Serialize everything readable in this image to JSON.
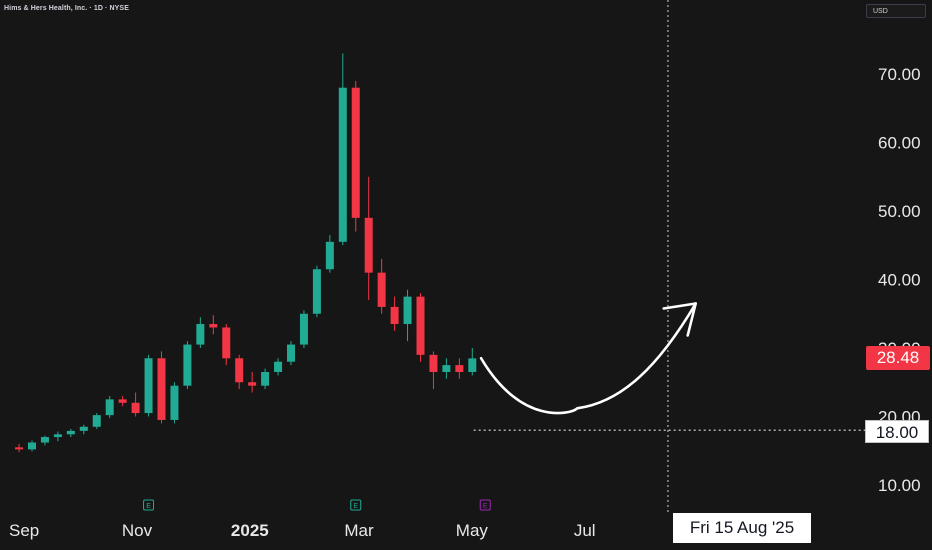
{
  "header": {
    "title": "Hims & Hers Health, Inc. · 1D · NYSE",
    "currency": "USD"
  },
  "colors": {
    "background": "#161616",
    "up_candle": "#22ab94",
    "down_candle": "#f23645",
    "annotation": "#ffffff",
    "earnings_past": "#22ab94",
    "earnings_future": "#9c27b0"
  },
  "chart_data": {
    "type": "candlestick",
    "title": "Hims & Hers Health, Inc. · 1D · NYSE",
    "y_ticks": [
      "10.00",
      "20.00",
      "30.00",
      "40.00",
      "50.00",
      "60.00",
      "70.00"
    ],
    "ylim": [
      6.5,
      77
    ],
    "x_ticks": [
      {
        "label": "Sep",
        "date": "2024-09-01",
        "bold": false
      },
      {
        "label": "Nov",
        "date": "2024-11-01",
        "bold": false
      },
      {
        "label": "2025",
        "date": "2025-01-01",
        "bold": true
      },
      {
        "label": "Mar",
        "date": "2025-03-01",
        "bold": false
      },
      {
        "label": "May",
        "date": "2025-05-01",
        "bold": false
      },
      {
        "label": "Jul",
        "date": "2025-07-01",
        "bold": false
      }
    ],
    "last_price": "28.48",
    "horizontal_level": {
      "label": "18.00",
      "value": 18.0,
      "from_date": "2025-05-02"
    },
    "crosshair": {
      "date": "2025-08-15",
      "label": "Fri 15 Aug '25"
    },
    "earnings_markers": [
      {
        "date": "2024-11-04",
        "icon": "E",
        "status": "past"
      },
      {
        "date": "2025-02-24",
        "icon": "E",
        "status": "past"
      },
      {
        "date": "2025-05-05",
        "icon": "E",
        "status": "upcoming"
      }
    ],
    "projection_arrow": {
      "description": "hand-drawn curved arrow",
      "points": [
        [
          "2025-05-06",
          28.5
        ],
        [
          "2025-06-02",
          21.5
        ],
        [
          "2025-06-27",
          21.2
        ],
        [
          "2025-07-25",
          26.0
        ],
        [
          "2025-08-30",
          36.5
        ]
      ]
    },
    "series": [
      {
        "ohlc": [
          [
            "2024-08-26",
            15.5,
            16.0,
            14.8,
            15.2
          ],
          [
            "2024-09-02",
            15.2,
            16.5,
            14.9,
            16.2
          ],
          [
            "2024-09-09",
            16.2,
            17.2,
            15.8,
            17.0
          ],
          [
            "2024-09-16",
            17.0,
            17.8,
            16.4,
            17.4
          ],
          [
            "2024-09-23",
            17.4,
            18.2,
            17.0,
            17.9
          ],
          [
            "2024-09-30",
            17.9,
            18.8,
            17.4,
            18.5
          ],
          [
            "2024-10-07",
            18.5,
            20.5,
            18.2,
            20.2
          ],
          [
            "2024-10-14",
            20.2,
            23.0,
            19.8,
            22.5
          ],
          [
            "2024-10-21",
            22.5,
            23.0,
            21.5,
            22.0
          ],
          [
            "2024-10-28",
            22.0,
            23.5,
            20.0,
            20.5
          ],
          [
            "2024-11-04",
            20.5,
            29.0,
            20.0,
            28.5
          ],
          [
            "2024-11-11",
            28.5,
            29.5,
            19.0,
            19.5
          ],
          [
            "2024-11-18",
            19.5,
            25.0,
            19.0,
            24.5
          ],
          [
            "2024-11-25",
            24.5,
            31.0,
            24.0,
            30.5
          ],
          [
            "2024-12-02",
            30.5,
            34.5,
            30.0,
            33.5
          ],
          [
            "2024-12-09",
            33.5,
            34.8,
            32.0,
            33.0
          ],
          [
            "2024-12-16",
            33.0,
            33.5,
            27.5,
            28.5
          ],
          [
            "2024-12-23",
            28.5,
            29.0,
            24.0,
            25.0
          ],
          [
            "2024-12-30",
            25.0,
            26.5,
            23.5,
            24.5
          ],
          [
            "2025-01-06",
            24.5,
            27.0,
            24.0,
            26.5
          ],
          [
            "2025-01-13",
            26.5,
            28.5,
            26.0,
            28.0
          ],
          [
            "2025-01-20",
            28.0,
            31.0,
            27.5,
            30.5
          ],
          [
            "2025-01-27",
            30.5,
            35.5,
            30.0,
            35.0
          ],
          [
            "2025-02-03",
            35.0,
            42.0,
            34.5,
            41.5
          ],
          [
            "2025-02-10",
            41.5,
            46.5,
            41.0,
            45.5
          ],
          [
            "2025-02-17",
            45.5,
            73.0,
            45.0,
            68.0
          ],
          [
            "2025-02-24",
            68.0,
            69.0,
            47.0,
            49.0
          ],
          [
            "2025-03-03",
            49.0,
            55.0,
            37.0,
            41.0
          ],
          [
            "2025-03-10",
            41.0,
            43.0,
            35.0,
            36.0
          ],
          [
            "2025-03-17",
            36.0,
            37.5,
            32.5,
            33.5
          ],
          [
            "2025-03-24",
            33.5,
            38.5,
            31.0,
            37.5
          ],
          [
            "2025-03-31",
            37.5,
            38.0,
            28.0,
            29.0
          ],
          [
            "2025-04-07",
            29.0,
            29.5,
            24.0,
            26.5
          ],
          [
            "2025-04-14",
            26.5,
            28.5,
            25.5,
            27.5
          ],
          [
            "2025-04-21",
            27.5,
            28.5,
            25.5,
            26.5
          ],
          [
            "2025-04-28",
            26.5,
            30.0,
            26.0,
            28.48
          ]
        ]
      }
    ]
  }
}
